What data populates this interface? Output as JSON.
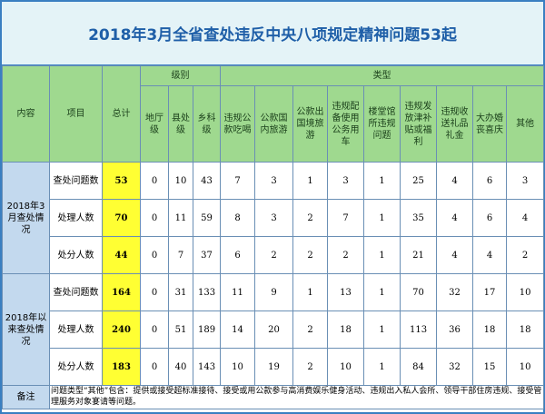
{
  "title": "2018年3月全省查处违反中央八项规定精神问题53起",
  "header": {
    "content": "内容",
    "item": "项目",
    "total": "总计",
    "level": "级别",
    "levels": [
      "地厅级",
      "县处级",
      "乡科级"
    ],
    "type": "类型",
    "types": [
      "违规公款吃喝",
      "公款国内旅游",
      "公款出国境旅游",
      "违规配备使用公务用车",
      "楼堂馆所违规问题",
      "违规发放津补贴或福利",
      "违规收送礼品礼金",
      "大办婚丧喜庆",
      "其他"
    ]
  },
  "groups": [
    {
      "label": "2018年3月查处情况",
      "rows": [
        {
          "item": "查处问题数",
          "values": [
            53,
            0,
            10,
            43,
            7,
            3,
            1,
            3,
            1,
            25,
            4,
            6,
            3
          ]
        },
        {
          "item": "处理人数",
          "values": [
            70,
            0,
            11,
            59,
            8,
            3,
            2,
            7,
            1,
            35,
            4,
            6,
            4
          ]
        },
        {
          "item": "处分人数",
          "values": [
            44,
            0,
            7,
            37,
            6,
            2,
            2,
            2,
            1,
            21,
            4,
            4,
            2
          ]
        }
      ]
    },
    {
      "label": "2018年以来查处情况",
      "rows": [
        {
          "item": "查处问题数",
          "values": [
            164,
            0,
            31,
            133,
            11,
            9,
            1,
            13,
            1,
            70,
            32,
            17,
            10
          ]
        },
        {
          "item": "处理人数",
          "values": [
            240,
            0,
            51,
            189,
            14,
            20,
            2,
            18,
            1,
            113,
            36,
            18,
            18
          ]
        },
        {
          "item": "处分人数",
          "values": [
            183,
            0,
            40,
            143,
            10,
            19,
            2,
            10,
            1,
            84,
            32,
            15,
            10
          ]
        }
      ]
    }
  ],
  "note": {
    "label": "备注",
    "text": "问题类型“其他”包含：提供或接受超标准接待、接受或用公款参与高消费娱乐健身活动、违规出入私人会所、领导干部住房违规、接受管理服务对象宴请等问题。"
  }
}
